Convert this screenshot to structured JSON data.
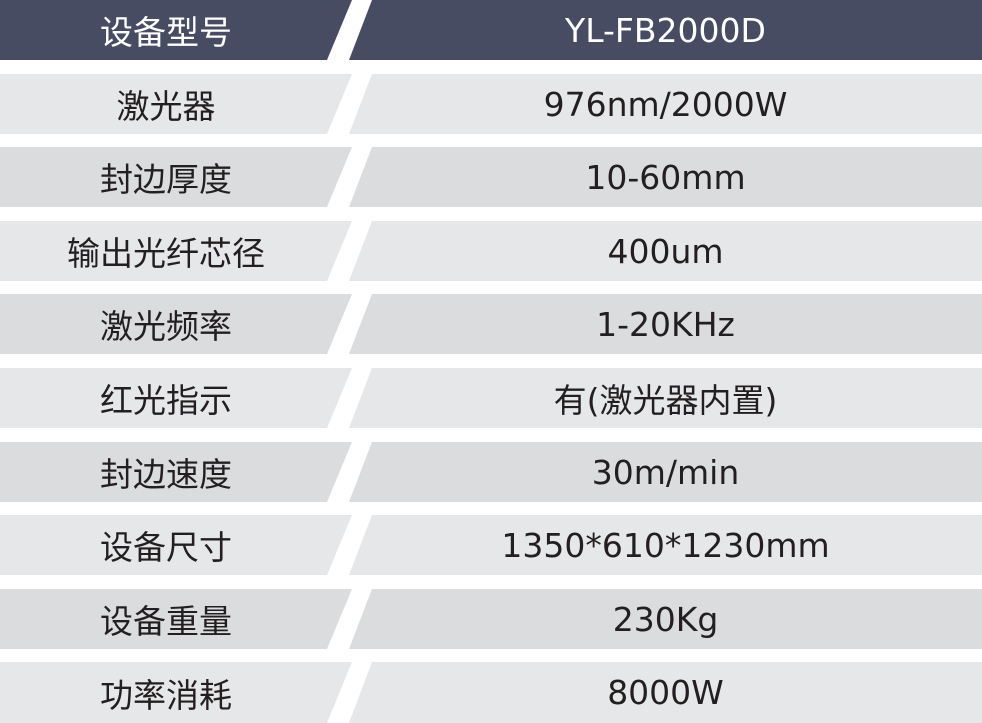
{
  "header": {
    "label": "设备型号",
    "value": "YL-FB2000D"
  },
  "rows": [
    {
      "label": "激光器",
      "value": "976nm/2000W"
    },
    {
      "label": "封边厚度",
      "value": "10-60mm"
    },
    {
      "label": "输出光纤芯径",
      "value": "400um"
    },
    {
      "label": "激光频率",
      "value": "1-20KHz"
    },
    {
      "label": "红光指示",
      "value": "有(激光器内置)"
    },
    {
      "label": "封边速度",
      "value": "30m/min"
    },
    {
      "label": "设备尺寸",
      "value": "1350*610*1230mm"
    },
    {
      "label": "设备重量",
      "value": "230Kg"
    },
    {
      "label": "功率消耗",
      "value": "8000W"
    }
  ],
  "colors": {
    "header": "#474c63",
    "row_light": "#e6e7e8",
    "row_dark": "#dadcde"
  }
}
